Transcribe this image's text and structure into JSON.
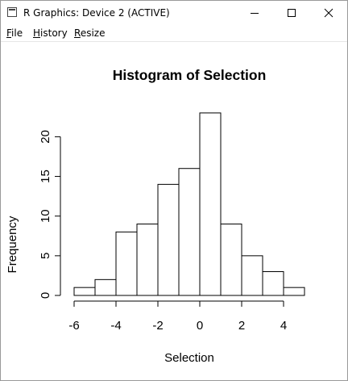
{
  "window": {
    "title": "R Graphics: Device 2 (ACTIVE)",
    "controls": [
      "minimize-icon",
      "maximize-icon",
      "close-icon"
    ]
  },
  "menu": [
    {
      "label": "File",
      "key": "F",
      "rest": "ile"
    },
    {
      "label": "History",
      "key": "H",
      "rest": "istory"
    },
    {
      "label": "Resize",
      "key": "R",
      "rest": "esize"
    }
  ],
  "chart_data": {
    "type": "bar",
    "title": "Histogram of Selection",
    "xlabel": "Selection",
    "ylabel": "Frequency",
    "bin_edges": [
      -6,
      -5,
      -4,
      -3,
      -2,
      -1,
      0,
      1,
      2,
      3,
      4,
      5
    ],
    "values": [
      1,
      2,
      8,
      9,
      14,
      16,
      23,
      9,
      5,
      3,
      1
    ],
    "x_ticks": [
      -6,
      -4,
      -2,
      0,
      2,
      4
    ],
    "y_ticks": [
      0,
      5,
      10,
      15,
      20
    ],
    "xlim": [
      -6,
      5
    ],
    "ylim": [
      0,
      23
    ],
    "grid": false,
    "bar_fill": "#ffffff",
    "bar_stroke": "#000000"
  }
}
